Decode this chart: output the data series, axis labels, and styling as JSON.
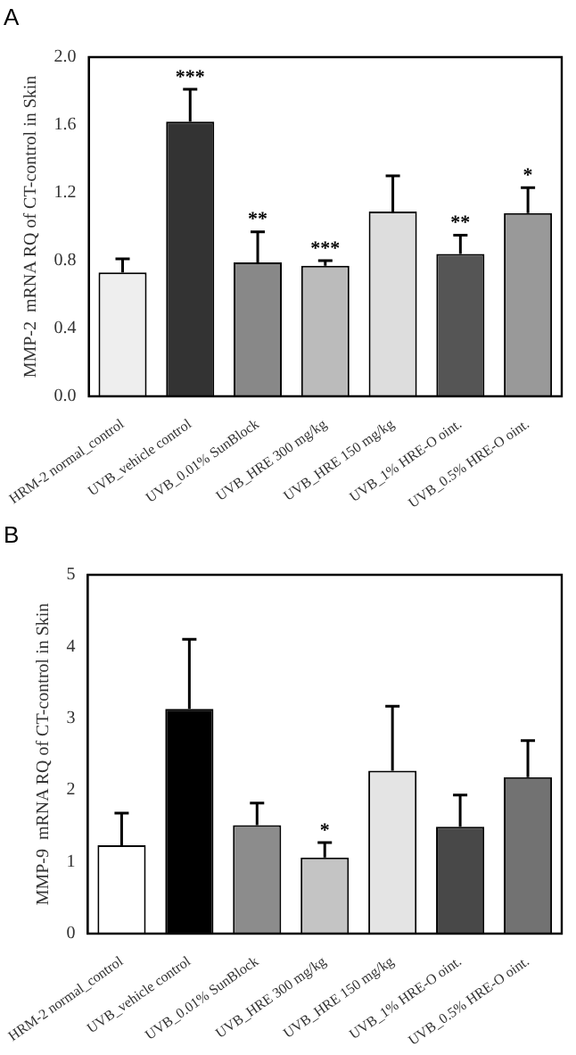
{
  "chart_data": [
    {
      "type": "bar",
      "ylabel": "MMP-2  mRNA RQ of CT-control in Skin",
      "categories": [
        "HRM-2 normal_control",
        "UVB_vehicle control",
        "UVB_0.01% SunBlock",
        "UVB_HRE 300 mg/kg",
        "UVB_HRE 150 mg/kg",
        "UVB_1% HRE-O oint.",
        "UVB_0.5% HRE-O oint."
      ],
      "values": [
        0.73,
        1.62,
        0.79,
        0.77,
        1.09,
        0.84,
        1.08
      ],
      "colors": [
        "#eeeeee",
        "#333333",
        "#888888",
        "#bbbbbb",
        "#dddddd",
        "#555555",
        "#999999"
      ],
      "errors": [
        [
          0.73,
          0.81
        ],
        [
          1.62,
          1.81
        ],
        [
          0.79,
          0.97
        ],
        [
          0.77,
          0.8
        ],
        [
          1.09,
          1.3
        ],
        [
          0.84,
          0.95
        ],
        [
          1.08,
          1.23
        ]
      ],
      "ylim": [
        0,
        2
      ],
      "yticks": [
        {
          "value": 0,
          "label": "0.0"
        },
        {
          "value": 0.4,
          "label": "0.4"
        },
        {
          "value": 0.8,
          "label": "0.8"
        },
        {
          "value": 1.2,
          "label": "1.2"
        },
        {
          "value": 1.6,
          "label": "1.6"
        },
        {
          "value": 2,
          "label": "2.0"
        }
      ],
      "grid": false,
      "legend": false,
      "annotations": [
        "A",
        {
          "text": "***",
          "x": "UVB_vehicle control",
          "y": 1.81
        },
        {
          "text": "**",
          "x": "UVB_0.01% SunBlock",
          "y": 0.97
        },
        {
          "text": "***",
          "x": "UVB_HRE 300 mg/kg",
          "y": 0.8
        },
        {
          "text": "**",
          "x": "UVB_1% HRE-O oint.",
          "y": 0.95
        },
        {
          "text": "*",
          "x": "UVB_0.5% HRE-O oint.",
          "y": 1.23
        }
      ]
    },
    {
      "type": "bar",
      "ylabel": "MMP-9  mRNA RQ of CT-control in Skin",
      "categories": [
        "HRM-2 normal_control",
        "UVB_vehicle control",
        "UVB_0.01% SunBlock",
        "UVB_HRE 300 mg/kg",
        "UVB_HRE 150 mg/kg",
        "UVB_1% HRE-O oint.",
        "UVB_0.5% HRE-O oint."
      ],
      "values": [
        1.23,
        3.13,
        1.51,
        1.06,
        2.27,
        1.49,
        2.18
      ],
      "colors": [
        "#ffffff",
        "#000000",
        "#8c8c8c",
        "#c4c4c4",
        "#e4e4e4",
        "#484848",
        "#727272"
      ],
      "errors": [
        [
          1.23,
          1.68
        ],
        [
          3.13,
          4.1
        ],
        [
          1.51,
          1.82
        ],
        [
          1.06,
          1.27
        ],
        [
          2.27,
          3.17
        ],
        [
          1.49,
          1.93
        ],
        [
          2.18,
          2.69
        ]
      ],
      "ylim": [
        0,
        5
      ],
      "yticks": [
        0,
        1,
        2,
        3,
        4,
        5
      ],
      "grid": false,
      "legend": false,
      "annotations": [
        "B",
        {
          "text": "*",
          "x": "UVB_HRE 300 mg/kg",
          "y": 1.27
        }
      ]
    }
  ]
}
